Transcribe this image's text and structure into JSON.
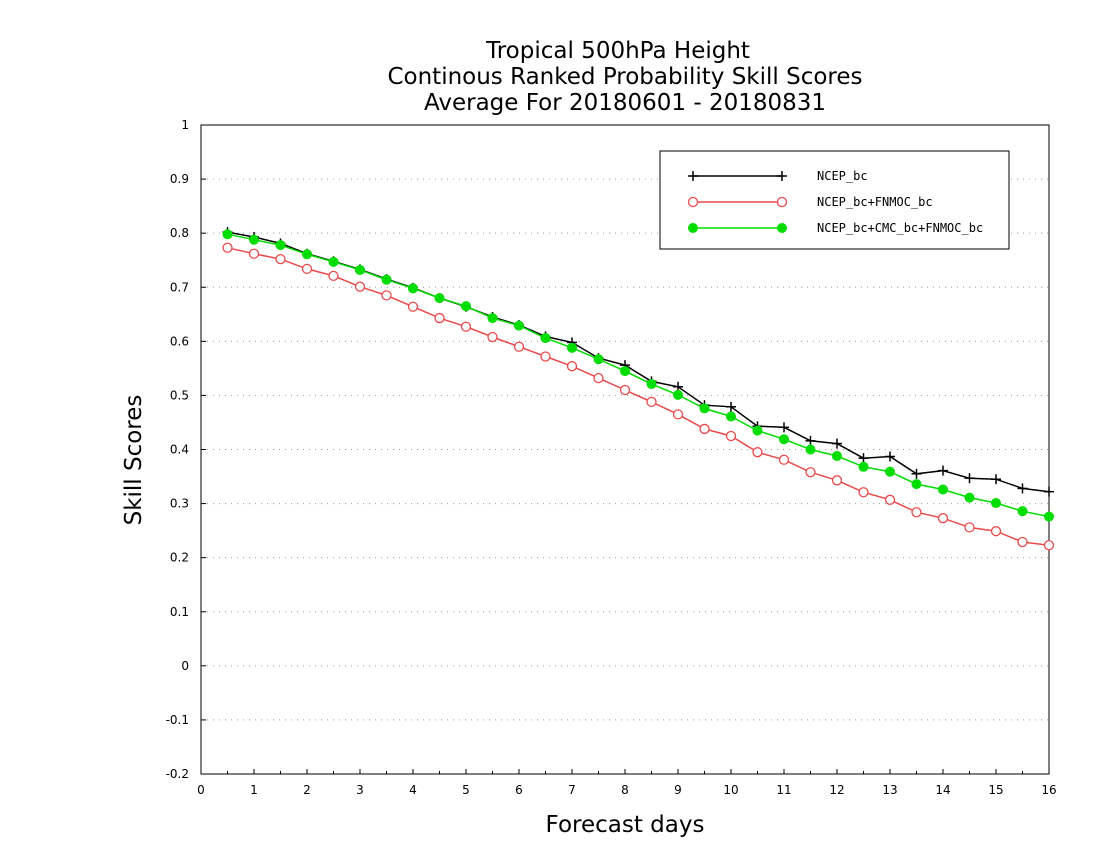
{
  "chart_data": {
    "type": "line",
    "title": [
      "Tropical 500hPa Height",
      "Continous Ranked Probability Skill Scores",
      "Average For 20180601 - 20180831"
    ],
    "xlabel": "Forecast days",
    "ylabel": "Skill Scores",
    "xlim": [
      0,
      16
    ],
    "ylim": [
      -0.2,
      1
    ],
    "xticks": [
      "0",
      "1",
      "2",
      "3",
      "4",
      "5",
      "6",
      "7",
      "8",
      "9",
      "10",
      "11",
      "12",
      "13",
      "14",
      "15",
      "16"
    ],
    "yticks": [
      "-0.2",
      "-0.1",
      "0",
      "0.1",
      "0.2",
      "0.3",
      "0.4",
      "0.5",
      "0.6",
      "0.7",
      "0.8",
      "0.9",
      "1"
    ],
    "grid": "horizontal dotted",
    "legend_position": "top-right",
    "x": [
      0.5,
      1,
      1.5,
      2,
      2.5,
      3,
      3.5,
      4,
      4.5,
      5,
      5.5,
      6,
      6.5,
      7,
      7.5,
      8,
      8.5,
      9,
      9.5,
      10,
      10.5,
      11,
      11.5,
      12,
      12.5,
      13,
      13.5,
      14,
      14.5,
      15,
      15.5,
      16
    ],
    "series": [
      {
        "name": "NCEP_bc",
        "color": "#000000",
        "marker": "plus",
        "values": [
          0.802,
          0.793,
          0.781,
          0.762,
          0.748,
          0.733,
          0.715,
          0.699,
          0.68,
          0.664,
          0.645,
          0.63,
          0.609,
          0.598,
          0.569,
          0.556,
          0.526,
          0.516,
          0.482,
          0.479,
          0.443,
          0.441,
          0.416,
          0.411,
          0.384,
          0.387,
          0.355,
          0.361,
          0.347,
          0.345,
          0.328,
          0.322
        ]
      },
      {
        "name": "NCEP_bc+FNMOC_bc",
        "color": "#e84a4a",
        "marker": "open-circle",
        "values": [
          0.773,
          0.762,
          0.752,
          0.734,
          0.721,
          0.701,
          0.685,
          0.664,
          0.643,
          0.627,
          0.608,
          0.59,
          0.572,
          0.554,
          0.532,
          0.51,
          0.488,
          0.465,
          0.438,
          0.425,
          0.395,
          0.381,
          0.358,
          0.343,
          0.321,
          0.307,
          0.284,
          0.273,
          0.256,
          0.249,
          0.229,
          0.223
        ]
      },
      {
        "name": "NCEP_bc+CMC_bc+FNMOC_bc",
        "color": "#00dd00",
        "marker": "filled-circle",
        "values": [
          0.798,
          0.788,
          0.778,
          0.761,
          0.747,
          0.732,
          0.714,
          0.698,
          0.68,
          0.665,
          0.643,
          0.629,
          0.606,
          0.588,
          0.567,
          0.545,
          0.521,
          0.501,
          0.476,
          0.461,
          0.435,
          0.419,
          0.4,
          0.388,
          0.368,
          0.359,
          0.336,
          0.326,
          0.311,
          0.301,
          0.286,
          0.276
        ]
      }
    ]
  }
}
